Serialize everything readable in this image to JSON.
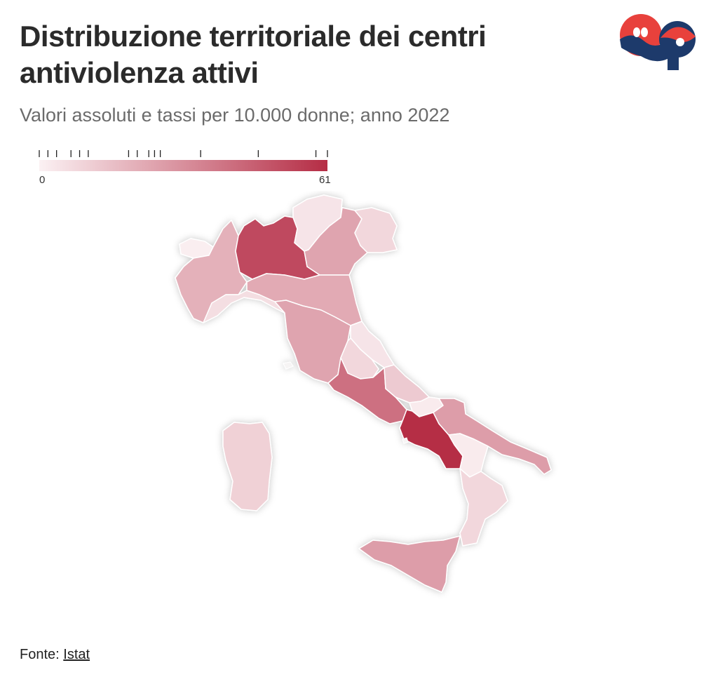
{
  "header": {
    "title": "Distribuzione territoriale dei centri antiviolenza attivi",
    "subtitle": "Valori assoluti e tassi per 10.000 donne; anno 2022"
  },
  "logo": {
    "name": "OP logo",
    "colors": {
      "red": "#e8413c",
      "blue": "#1d3a6b"
    }
  },
  "legend": {
    "min_label": "0",
    "max_label": "61",
    "min": 0,
    "max": 61,
    "color_low": "#fbf1f3",
    "color_high": "#b52d45",
    "ticks": [
      0,
      3,
      6,
      11,
      14,
      17,
      31,
      34,
      38,
      40,
      42,
      56,
      76,
      96,
      100
    ]
  },
  "map_data": {
    "regions": [
      {
        "name": "Valle d'Aosta",
        "value": 1
      },
      {
        "name": "Piemonte",
        "value": 20
      },
      {
        "name": "Lombardia",
        "value": 52
      },
      {
        "name": "Trentino-Alto Adige",
        "value": 4
      },
      {
        "name": "Veneto",
        "value": 24
      },
      {
        "name": "Friuli-Venezia Giulia",
        "value": 8
      },
      {
        "name": "Liguria",
        "value": 6
      },
      {
        "name": "Emilia-Romagna",
        "value": 22
      },
      {
        "name": "Toscana",
        "value": 24
      },
      {
        "name": "Marche",
        "value": 4
      },
      {
        "name": "Umbria",
        "value": 8
      },
      {
        "name": "Lazio",
        "value": 40
      },
      {
        "name": "Abruzzo",
        "value": 12
      },
      {
        "name": "Molise",
        "value": 2
      },
      {
        "name": "Campania",
        "value": 61
      },
      {
        "name": "Puglia",
        "value": 26
      },
      {
        "name": "Basilicata",
        "value": 2
      },
      {
        "name": "Calabria",
        "value": 8
      },
      {
        "name": "Sicilia",
        "value": 26
      },
      {
        "name": "Sardegna",
        "value": 10
      }
    ]
  },
  "source": {
    "prefix": "Fonte: ",
    "link_label": "Istat"
  }
}
